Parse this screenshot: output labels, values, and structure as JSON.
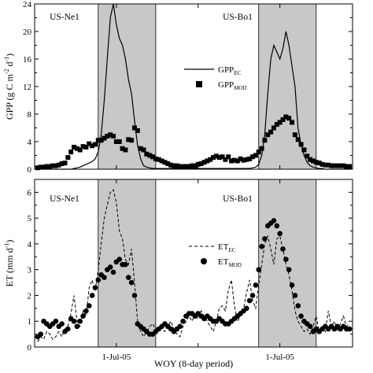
{
  "chart_data": [
    {
      "type": "line",
      "panel": "top",
      "ylabel_parts": {
        "main": "GPP (g C m",
        "sup1": "-2",
        "mid": " d",
        "sup2": "-1",
        "end": ")"
      },
      "ylim": [
        0,
        24
      ],
      "yticks": [
        "0",
        "4",
        "8",
        "12",
        "16",
        "20",
        "24"
      ],
      "site_labels": [
        "US-Ne1",
        "US-Bo1"
      ],
      "legend": {
        "position": "center",
        "entries": [
          {
            "base": "GPP",
            "sub": "EC"
          },
          {
            "base": "GPP",
            "sub": "MOD"
          }
        ]
      },
      "shaded_periods": [
        [
          21,
          40
        ],
        [
          74,
          93
        ]
      ],
      "series": [
        {
          "name": "GPP_EC",
          "style": "solid-line",
          "x": [
            1,
            2,
            3,
            4,
            5,
            6,
            7,
            8,
            9,
            10,
            11,
            12,
            13,
            14,
            15,
            16,
            17,
            18,
            19,
            20,
            21,
            22,
            23,
            24,
            25,
            26,
            27,
            28,
            29,
            30,
            31,
            32,
            33,
            34,
            35,
            36,
            37,
            38,
            39,
            40,
            41,
            42,
            43,
            44,
            45,
            46,
            47,
            48,
            49,
            50,
            51,
            52,
            53,
            54,
            55,
            56,
            57,
            58,
            59,
            60,
            61,
            62,
            63,
            64,
            65,
            66,
            67,
            68,
            69,
            70,
            71,
            72,
            73,
            74,
            75,
            76,
            77,
            78,
            79,
            80,
            81,
            82,
            83,
            84,
            85,
            86,
            87,
            88,
            89,
            90,
            91,
            92,
            93,
            94,
            95,
            96,
            97,
            98,
            99,
            100,
            101,
            102,
            103,
            104
          ],
          "y": [
            0.0,
            0.0,
            0.0,
            0.0,
            0.0,
            0.0,
            0.0,
            0.0,
            0.0,
            0.0,
            0.0,
            0.0,
            0.1,
            0.2,
            0.3,
            0.5,
            0.7,
            0.9,
            1.1,
            1.5,
            2.5,
            5.0,
            10.0,
            16.0,
            22.0,
            24.0,
            21.0,
            19.0,
            18.0,
            16.0,
            13.0,
            11.0,
            7.0,
            3.5,
            1.5,
            0.5,
            0.3,
            0.2,
            0.1,
            0.1,
            0.1,
            0.1,
            0.1,
            0.1,
            0.1,
            0.1,
            0.1,
            0.1,
            0.1,
            0.1,
            0.1,
            0.1,
            0.1,
            0.1,
            0.1,
            0.1,
            0.1,
            0.1,
            0.1,
            0.1,
            0.1,
            0.1,
            0.1,
            0.1,
            0.1,
            0.1,
            0.1,
            0.1,
            0.1,
            0.1,
            0.1,
            0.2,
            0.3,
            0.7,
            2.0,
            5.0,
            11.0,
            16.0,
            18.0,
            17.0,
            16.0,
            17.5,
            20.0,
            18.0,
            15.0,
            12.0,
            6.0,
            3.5,
            2.0,
            1.0,
            0.5,
            0.3,
            0.2,
            0.1,
            0.1,
            0.0,
            0.0,
            0.0,
            0.0,
            0.0,
            0.0,
            0.0,
            0.0,
            0.0
          ]
        },
        {
          "name": "GPP_MOD",
          "style": "square-markers",
          "x": [
            1,
            2,
            3,
            4,
            5,
            6,
            7,
            8,
            9,
            10,
            11,
            12,
            13,
            14,
            15,
            16,
            17,
            18,
            19,
            20,
            21,
            22,
            23,
            24,
            25,
            26,
            27,
            28,
            29,
            30,
            31,
            32,
            33,
            34,
            35,
            36,
            37,
            38,
            39,
            40,
            41,
            42,
            43,
            44,
            45,
            46,
            47,
            48,
            49,
            50,
            51,
            52,
            53,
            54,
            55,
            56,
            57,
            58,
            59,
            60,
            61,
            62,
            63,
            64,
            65,
            66,
            67,
            68,
            69,
            70,
            71,
            72,
            73,
            74,
            75,
            76,
            77,
            78,
            79,
            80,
            81,
            82,
            83,
            84,
            85,
            86,
            87,
            88,
            89,
            90,
            91,
            92,
            93,
            94,
            95,
            96,
            97,
            98,
            99,
            100,
            101,
            102,
            103,
            104
          ],
          "y": [
            0.2,
            0.3,
            0.3,
            0.4,
            0.4,
            0.5,
            0.5,
            0.6,
            0.8,
            0.9,
            1.7,
            2.5,
            3.2,
            3.0,
            2.8,
            3.3,
            3.2,
            3.7,
            3.4,
            3.6,
            4.2,
            4.2,
            4.5,
            4.8,
            5.0,
            4.8,
            4.0,
            4.0,
            3.0,
            2.8,
            4.3,
            4.2,
            6.0,
            5.6,
            3.0,
            2.8,
            2.2,
            2.0,
            1.8,
            1.5,
            1.4,
            1.2,
            1.0,
            0.8,
            0.6,
            0.5,
            0.5,
            0.4,
            0.4,
            0.4,
            0.4,
            0.5,
            0.5,
            0.7,
            0.8,
            1.0,
            1.2,
            1.4,
            1.7,
            1.9,
            1.7,
            1.8,
            1.4,
            1.8,
            1.2,
            1.3,
            1.2,
            1.5,
            1.3,
            1.4,
            1.5,
            1.8,
            2.0,
            2.5,
            3.0,
            4.2,
            5.0,
            5.4,
            6.0,
            6.5,
            6.8,
            7.2,
            7.6,
            7.4,
            6.8,
            5.0,
            4.3,
            3.6,
            2.8,
            1.9,
            1.4,
            1.2,
            1.0,
            0.9,
            0.7,
            0.6,
            0.6,
            0.5,
            0.5,
            0.5,
            0.5,
            0.5,
            0.4,
            0.4
          ]
        }
      ]
    },
    {
      "type": "line",
      "panel": "bottom",
      "ylabel_parts": {
        "main": "ET (mm d",
        "sup1": "-1",
        "end": ")"
      },
      "xlabel": "WOY (8-day period)",
      "ylim": [
        0,
        6.5
      ],
      "yticks": [
        "0",
        "1",
        "2",
        "3",
        "4",
        "5",
        "6"
      ],
      "xtick_labels": [
        {
          "x": 27,
          "label": "1-Jul-05"
        },
        {
          "x": 81,
          "label": "1-Jul-05"
        }
      ],
      "site_labels": [
        "US-Ne1",
        "US-Bo1"
      ],
      "legend": {
        "position": "center-right",
        "entries": [
          {
            "base": "ET",
            "sub": "EC"
          },
          {
            "base": "ET",
            "sub": "MOD"
          }
        ]
      },
      "shaded_periods": [
        [
          21,
          40
        ],
        [
          74,
          93
        ]
      ],
      "series": [
        {
          "name": "ET_EC",
          "style": "dashed-line",
          "x": [
            1,
            2,
            3,
            4,
            5,
            6,
            7,
            8,
            9,
            10,
            11,
            12,
            13,
            14,
            15,
            16,
            17,
            18,
            19,
            20,
            21,
            22,
            23,
            24,
            25,
            26,
            27,
            28,
            29,
            30,
            31,
            32,
            33,
            34,
            35,
            36,
            37,
            38,
            39,
            40,
            41,
            42,
            43,
            44,
            45,
            46,
            47,
            48,
            49,
            50,
            51,
            52,
            53,
            54,
            55,
            56,
            57,
            58,
            59,
            60,
            61,
            62,
            63,
            64,
            65,
            66,
            67,
            68,
            69,
            70,
            71,
            72,
            73,
            74,
            75,
            76,
            77,
            78,
            79,
            80,
            81,
            82,
            83,
            84,
            85,
            86,
            87,
            88,
            89,
            90,
            91,
            92,
            93,
            94,
            95,
            96,
            97,
            98,
            99,
            100,
            101,
            102,
            103,
            104
          ],
          "y": [
            0.2,
            0.4,
            0.3,
            0.6,
            0.5,
            0.3,
            0.4,
            0.6,
            0.4,
            0.7,
            0.8,
            1.3,
            2.0,
            1.0,
            0.8,
            1.4,
            1.2,
            2.3,
            2.6,
            2.2,
            3.0,
            4.0,
            5.0,
            5.5,
            6.0,
            6.1,
            5.6,
            4.5,
            4.2,
            3.4,
            3.2,
            3.8,
            2.5,
            1.0,
            0.6,
            0.4,
            0.6,
            0.8,
            0.9,
            0.7,
            0.8,
            0.7,
            0.6,
            0.8,
            1.0,
            0.7,
            0.5,
            0.4,
            0.8,
            1.0,
            1.2,
            1.0,
            1.3,
            1.1,
            1.4,
            1.2,
            1.0,
            0.8,
            0.6,
            1.0,
            1.5,
            1.6,
            1.4,
            2.2,
            2.6,
            1.6,
            1.0,
            1.2,
            1.5,
            2.1,
            2.6,
            1.8,
            1.5,
            2.4,
            3.2,
            4.0,
            4.3,
            3.8,
            3.2,
            4.2,
            4.3,
            3.8,
            3.2,
            2.8,
            2.2,
            1.4,
            1.0,
            0.8,
            0.6,
            0.7,
            0.5,
            0.8,
            1.2,
            0.6,
            0.8,
            0.6,
            1.4,
            0.8,
            1.0,
            0.6,
            0.9,
            1.2,
            0.8,
            0.9
          ]
        },
        {
          "name": "ET_MOD",
          "style": "circle-markers",
          "x": [
            1,
            2,
            3,
            4,
            5,
            6,
            7,
            8,
            9,
            10,
            11,
            12,
            13,
            14,
            15,
            16,
            17,
            18,
            19,
            20,
            21,
            22,
            23,
            24,
            25,
            26,
            27,
            28,
            29,
            30,
            31,
            32,
            33,
            34,
            35,
            36,
            37,
            38,
            39,
            40,
            41,
            42,
            43,
            44,
            45,
            46,
            47,
            48,
            49,
            50,
            51,
            52,
            53,
            54,
            55,
            56,
            57,
            58,
            59,
            60,
            61,
            62,
            63,
            64,
            65,
            66,
            67,
            68,
            69,
            70,
            71,
            72,
            73,
            74,
            75,
            76,
            77,
            78,
            79,
            80,
            81,
            82,
            83,
            84,
            85,
            86,
            87,
            88,
            89,
            90,
            91,
            92,
            93,
            94,
            95,
            96,
            97,
            98,
            99,
            100,
            101,
            102,
            103,
            104
          ],
          "y": [
            0.4,
            0.5,
            1.0,
            0.9,
            0.8,
            0.9,
            1.0,
            0.8,
            0.9,
            0.6,
            0.7,
            1.1,
            1.0,
            0.8,
            1.0,
            1.2,
            1.4,
            1.6,
            2.0,
            2.3,
            2.6,
            2.8,
            2.7,
            3.0,
            3.1,
            2.9,
            3.3,
            3.4,
            3.2,
            3.2,
            2.7,
            2.5,
            2.0,
            0.9,
            0.8,
            0.7,
            0.6,
            0.5,
            0.5,
            0.6,
            0.7,
            0.8,
            0.9,
            0.8,
            0.7,
            0.6,
            0.7,
            0.8,
            1.0,
            1.2,
            1.3,
            1.3,
            1.2,
            1.3,
            1.2,
            1.1,
            1.2,
            1.1,
            1.0,
            1.0,
            1.1,
            1.0,
            0.9,
            0.9,
            1.0,
            1.1,
            1.2,
            1.3,
            1.4,
            1.5,
            1.8,
            2.0,
            2.4,
            3.0,
            3.9,
            4.2,
            4.7,
            4.8,
            4.9,
            4.7,
            4.4,
            3.8,
            3.4,
            3.0,
            2.4,
            2.0,
            1.6,
            1.2,
            1.0,
            0.9,
            0.8,
            0.6,
            0.7,
            0.6,
            0.7,
            0.8,
            0.7,
            0.8,
            0.7,
            0.8,
            0.7,
            0.8,
            0.7,
            0.7
          ]
        }
      ]
    }
  ]
}
